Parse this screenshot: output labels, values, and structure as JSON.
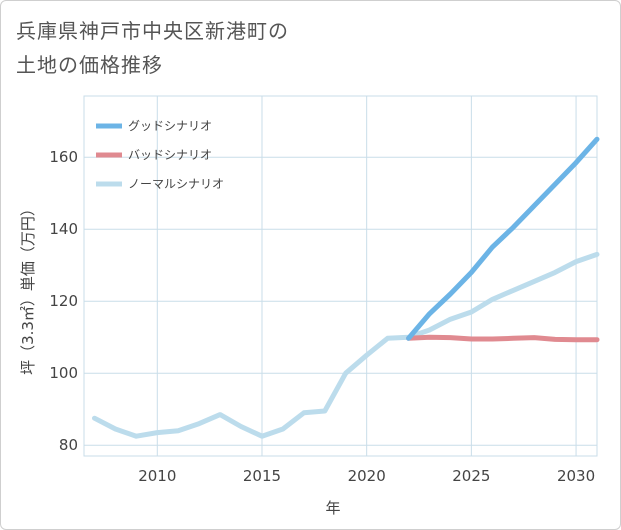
{
  "chart_data": {
    "type": "line",
    "title_line1": "兵庫県神戸市中央区新港町の",
    "title_line2": "土地の価格推移",
    "xlabel": "年",
    "ylabel": "坪（3.3㎡）単価（万円）",
    "xlim": [
      2006.5,
      2031
    ],
    "ylim": [
      77,
      177
    ],
    "x_ticks": [
      2010,
      2015,
      2020,
      2025,
      2030
    ],
    "y_ticks": [
      80,
      100,
      120,
      140,
      160
    ],
    "colors": {
      "good": "#6cb4e6",
      "bad": "#e08a90",
      "normal": "#bcdcec",
      "grid": "#c9dde9"
    },
    "series": [
      {
        "name": "グッドシナリオ",
        "key": "good",
        "x": [
          2022,
          2023,
          2024,
          2025,
          2026,
          2027,
          2028,
          2029,
          2030,
          2031
        ],
        "y": [
          109.7,
          116.5,
          122,
          128,
          135,
          140.5,
          146.5,
          152.5,
          158.5,
          165
        ]
      },
      {
        "name": "バッドシナリオ",
        "key": "bad",
        "x": [
          2022,
          2023,
          2024,
          2025,
          2026,
          2027,
          2028,
          2029,
          2030,
          2031
        ],
        "y": [
          109.7,
          110,
          109.9,
          109.5,
          109.5,
          109.7,
          109.9,
          109.4,
          109.3,
          109.3
        ]
      },
      {
        "name": "ノーマルシナリオ",
        "key": "normal",
        "x": [
          2007,
          2008,
          2009,
          2010,
          2011,
          2012,
          2013,
          2014,
          2015,
          2016,
          2017,
          2018,
          2019,
          2020,
          2021,
          2022,
          2023,
          2024,
          2025,
          2026,
          2027,
          2028,
          2029,
          2030,
          2031
        ],
        "y": [
          87.5,
          84.5,
          82.5,
          83.5,
          84,
          86,
          88.5,
          85.2,
          82.5,
          84.5,
          89,
          89.5,
          100,
          105,
          109.7,
          110,
          112,
          115,
          117,
          120.5,
          123,
          125.5,
          128,
          131,
          133
        ]
      }
    ]
  }
}
